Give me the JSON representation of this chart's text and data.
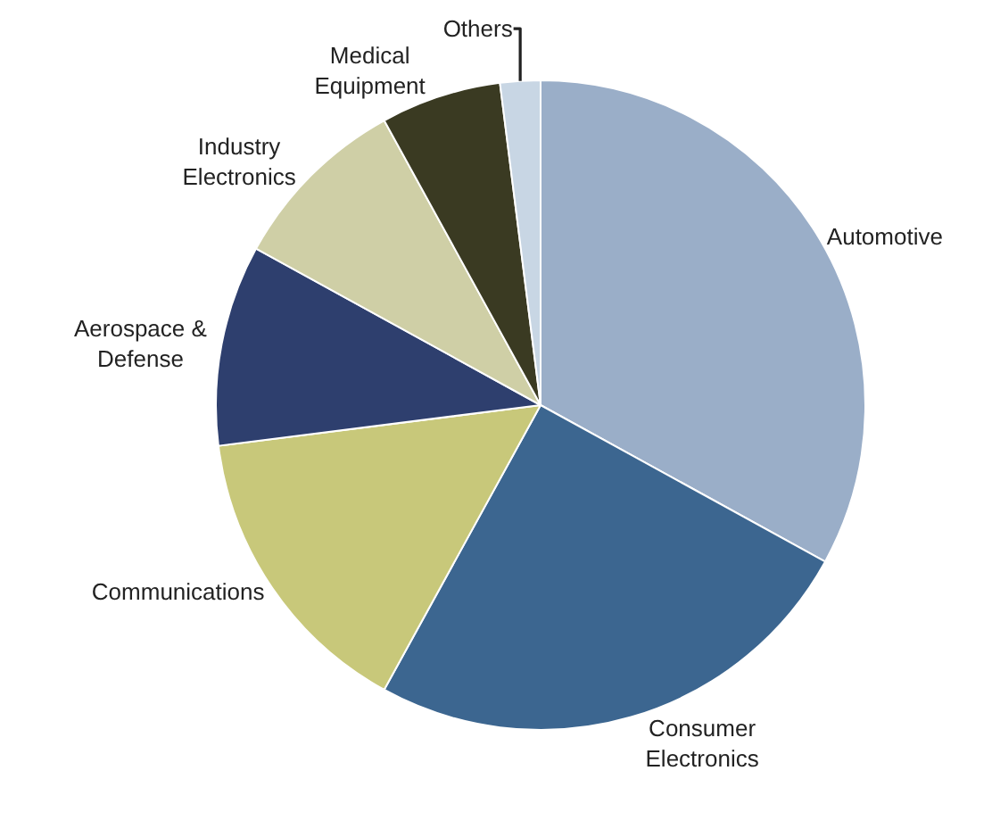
{
  "chart_data": {
    "type": "pie",
    "categories": [
      "Automotive",
      "Consumer Electronics",
      "Communications",
      "Aerospace & Defense",
      "Industry Electronics",
      "Medical Equipment",
      "Others"
    ],
    "values": [
      33,
      25,
      15,
      10,
      9,
      6,
      2
    ],
    "colors": [
      "#9aaec8",
      "#3c6690",
      "#c8c87a",
      "#2e3f6e",
      "#cfcfa6",
      "#3a3a22",
      "#c8d6e4"
    ],
    "legend": false
  }
}
